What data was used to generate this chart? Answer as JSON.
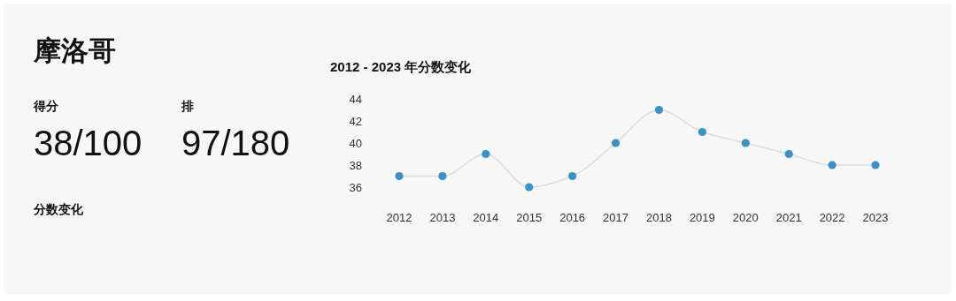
{
  "chart_data": [
    {
      "type": "other",
      "title": "摩洛哥",
      "annotations": [
        "得分",
        "38/100",
        "排",
        "97/180",
        "分数变化"
      ]
    },
    {
      "type": "line",
      "title": "2012 - 2023 年分数变化",
      "categories": [
        "2012",
        "2013",
        "2014",
        "2015",
        "2016",
        "2017",
        "2018",
        "2019",
        "2020",
        "2021",
        "2022",
        "2023"
      ],
      "series": [
        {
          "type": "line",
          "color": "#dcdcdc",
          "values": [
            37,
            37,
            39,
            36,
            37,
            40,
            43,
            41,
            40,
            39,
            38,
            38
          ]
        },
        {
          "type": "scatter",
          "color": "#3d8fc6",
          "values": [
            37,
            37,
            39,
            36,
            37,
            40,
            43,
            41,
            40,
            39,
            38,
            38
          ]
        }
      ],
      "ylim": [
        36,
        44
      ],
      "yticks": [
        36,
        38,
        40,
        42,
        44
      ]
    }
  ]
}
